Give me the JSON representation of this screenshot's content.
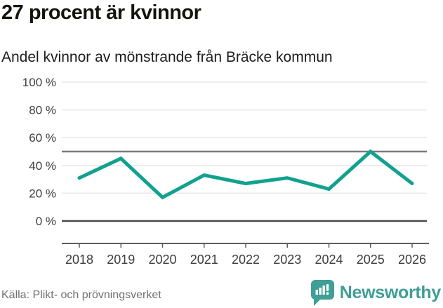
{
  "header": {
    "title": "27 procent är kvinnor",
    "subtitle": "Andel kvinnor av mönstrande från Bräcke kommun"
  },
  "footer": {
    "source": "Källa: Plikt- och prövningsverket",
    "brand": "Newsworthy"
  },
  "colors": {
    "line": "#12a08f",
    "brand": "#3f9e96",
    "grid_light": "#e8e8e8",
    "benchmark": "#7a7a7a",
    "axis_dark": "#4a4a4a",
    "axis_base": "#5e5e5e",
    "tick_text": "#3d3d3d"
  },
  "chart_data": {
    "type": "line",
    "title": "27 procent är kvinnor",
    "subtitle": "Andel kvinnor av mönstrande från Bräcke kommun",
    "categories": [
      "2018",
      "2019",
      "2020",
      "2021",
      "2022",
      "2023",
      "2024",
      "2025",
      "2026"
    ],
    "values": [
      31,
      45,
      17,
      33,
      27,
      31,
      23,
      50,
      27
    ],
    "unit": "%",
    "xlabel": "",
    "ylabel": "",
    "ylim": [
      0,
      100
    ],
    "y_ticks": [
      {
        "value": 0,
        "label": "0 %"
      },
      {
        "value": 20,
        "label": "20 %"
      },
      {
        "value": 40,
        "label": "40 %"
      },
      {
        "value": 60,
        "label": "60 %"
      },
      {
        "value": 80,
        "label": "80 %"
      },
      {
        "value": 100,
        "label": "100 %"
      }
    ],
    "benchmark_value": 50,
    "grid": true,
    "legend": false,
    "source": "Källa: Plikt- och prövningsverket"
  }
}
